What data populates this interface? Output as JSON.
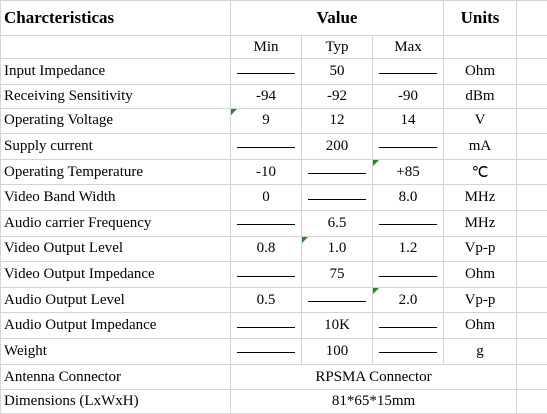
{
  "header": {
    "characteristics": "Charcteristicas",
    "value": "Value",
    "units": "Units",
    "min": "Min",
    "typ": "Typ",
    "max": "Max"
  },
  "rows": [
    {
      "name": "Input Impedance",
      "min": "—",
      "typ": "50",
      "max": "—",
      "unit": "Ohm"
    },
    {
      "name": "Receiving Sensitivity",
      "min": "-94",
      "typ": "-92",
      "max": "-90",
      "unit": "dBm"
    },
    {
      "name": "Operating Voltage",
      "min": "9",
      "typ": "12",
      "max": "14",
      "unit": "V"
    },
    {
      "name": "Supply current",
      "min": "—",
      "typ": "200",
      "max": "—",
      "unit": "mA"
    },
    {
      "name": "Operating Temperature",
      "min": "-10",
      "typ": "—",
      "max": "+85",
      "unit": "℃"
    },
    {
      "name": "Video Band Width",
      "min": "0",
      "typ": "—",
      "max": "8.0",
      "unit": "MHz"
    },
    {
      "name": "Audio carrier Frequency",
      "min": "—",
      "typ": "6.5",
      "max": "—",
      "unit": "MHz"
    },
    {
      "name": "Video Output Level",
      "min": "0.8",
      "typ": "1.0",
      "max": "1.2",
      "unit": "Vp-p"
    },
    {
      "name": "Video Output Impedance",
      "min": "—",
      "typ": "75",
      "max": "—",
      "unit": "Ohm"
    },
    {
      "name": "Audio Output Level",
      "min": "0.5",
      "typ": "—",
      "max": "2.0",
      "unit": "Vp-p"
    },
    {
      "name": "Audio Output Impedance",
      "min": "—",
      "typ": "10K",
      "max": "—",
      "unit": "Ohm"
    },
    {
      "name": "Weight",
      "min": "—",
      "typ": "100",
      "max": "—",
      "unit": "g"
    }
  ],
  "merged_rows": [
    {
      "name": "Antenna Connector",
      "value": "RPSMA Connector"
    },
    {
      "name": "Dimensions (LxWxH)",
      "value": "81*65*15mm"
    }
  ],
  "indicator_color": "#1f8a2e"
}
